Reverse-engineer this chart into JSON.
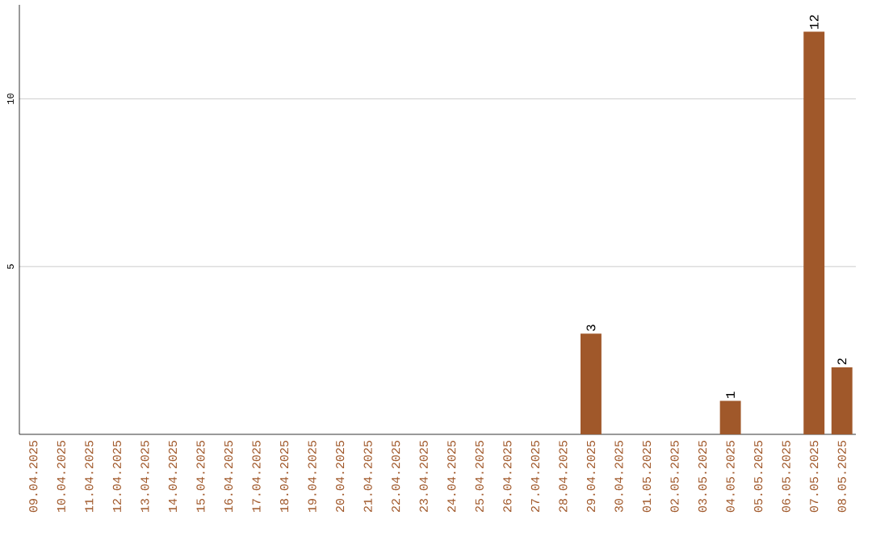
{
  "chart_data": {
    "type": "bar",
    "categories": [
      "09.04.2025",
      "10.04.2025",
      "11.04.2025",
      "12.04.2025",
      "13.04.2025",
      "14.04.2025",
      "15.04.2025",
      "16.04.2025",
      "17.04.2025",
      "18.04.2025",
      "19.04.2025",
      "20.04.2025",
      "21.04.2025",
      "22.04.2025",
      "23.04.2025",
      "24.04.2025",
      "25.04.2025",
      "26.04.2025",
      "27.04.2025",
      "28.04.2025",
      "29.04.2025",
      "30.04.2025",
      "01.05.2025",
      "02.05.2025",
      "03.05.2025",
      "04.05.2025",
      "05.05.2025",
      "06.05.2025",
      "07.05.2025",
      "08.05.2025"
    ],
    "values": [
      0,
      0,
      0,
      0,
      0,
      0,
      0,
      0,
      0,
      0,
      0,
      0,
      0,
      0,
      0,
      0,
      0,
      0,
      0,
      0,
      3,
      0,
      0,
      0,
      0,
      1,
      0,
      0,
      12,
      2
    ],
    "value_labels": [
      null,
      null,
      null,
      null,
      null,
      null,
      null,
      null,
      null,
      null,
      null,
      null,
      null,
      null,
      null,
      null,
      null,
      null,
      null,
      null,
      "3",
      null,
      null,
      null,
      null,
      "1",
      null,
      null,
      "12",
      "2"
    ],
    "color": "#a0582a",
    "ylim": [
      0,
      12.8
    ],
    "yticks": [
      5,
      10
    ],
    "grid": "y"
  }
}
